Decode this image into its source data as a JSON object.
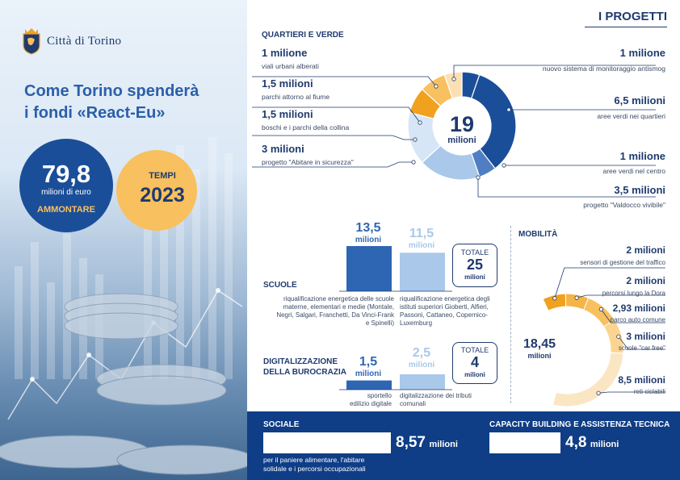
{
  "logo": {
    "text": "Città di Torino"
  },
  "header": {
    "title_line1": "Come Torino spenderà",
    "title_line2": "i fondi «React-Eu»"
  },
  "amount": {
    "value": "79,8",
    "unit": "milioni di euro",
    "label": "AMMONTARE"
  },
  "timing": {
    "label": "TEMPI",
    "value": "2023"
  },
  "projects_title": "I PROGETTI",
  "colors": {
    "dark_blue": "#1a4e99",
    "mid_blue": "#4f7ec2",
    "light_blue": "#a9c8ea",
    "pale_blue": "#d6e6f6",
    "orange": "#f0a21e",
    "light_orange": "#f8c05e",
    "pale_orange": "#fbe0b3",
    "navy": "#0f3d86"
  },
  "chart_data": [
    {
      "type": "pie",
      "title": "QUARTIERI E VERDE",
      "center_value": "19",
      "center_unit": "milioni",
      "categories": [
        "nuovo sistema di monitoraggio antismog",
        "aree verdi nei quartieri",
        "aree verdi nel centro",
        "progetto \"Valdocco vivibile\"",
        "progetto \"Abitare in sicurezza\"",
        "boschi e i parchi della collina",
        "parchi attorno al fiume",
        "viali urbani alberati"
      ],
      "values": [
        1,
        6.5,
        1,
        3.5,
        3,
        1.5,
        1.5,
        1
      ],
      "labels": [
        "1 milione",
        "6,5 milioni",
        "1 milione",
        "3,5 milioni",
        "3 milioni",
        "1,5 milioni",
        "1,5 milioni",
        "1 milione"
      ],
      "colors": [
        "#1a4e99",
        "#1a4e99",
        "#4f7ec2",
        "#a9c8ea",
        "#d6e6f6",
        "#f0a21e",
        "#f8c05e",
        "#fbe0b3"
      ]
    },
    {
      "type": "bar",
      "title": "SCUOLE",
      "categories": [
        "riqualificazione energetica delle scuole materne, elementari e medie (Montale, Negri, Salgari, Franchetti, Da Vinci-Frank e Spinelli)",
        "riqualificazione energetica degli istituti superiori Gioberti, Alfieri, Passoni, Cattaneo, Copernico-Luxemburg"
      ],
      "values": [
        13.5,
        11.5
      ],
      "value_labels": [
        "13,5",
        "11,5"
      ],
      "unit": "milioni",
      "total_label": "TOTALE",
      "total_value": "25",
      "total_unit": "milioni",
      "colors": [
        "#2f66b3",
        "#a9c8ea"
      ]
    },
    {
      "type": "bar",
      "title": "DIGITALIZZAZIONE DELLA BUROCRAZIA",
      "categories": [
        "sportello edilizio digitale",
        "digitalizzazione dei tributi comunali"
      ],
      "values": [
        1.5,
        2.5
      ],
      "value_labels": [
        "1,5",
        "2,5"
      ],
      "unit": "milioni",
      "total_label": "TOTALE",
      "total_value": "4",
      "total_unit": "milioni",
      "colors": [
        "#2f66b3",
        "#a9c8ea"
      ]
    },
    {
      "type": "pie",
      "title": "MOBILITÀ",
      "center_value": "18,45",
      "center_unit": "milioni",
      "categories": [
        "sensori di gestione del traffico",
        "percorsi lungo la Dora",
        "parco auto comune",
        "scuole \"car free\"",
        "reti ciclabili"
      ],
      "values": [
        2,
        2,
        2.93,
        3,
        8.5
      ],
      "labels": [
        "2 milioni",
        "2 milioni",
        "2,93 milioni",
        "3 milioni",
        "8,5 milioni"
      ],
      "colors": [
        "#f0a21e",
        "#f5b446",
        "#f8c05e",
        "#fbd590",
        "#fbe6c4"
      ]
    }
  ],
  "sociale": {
    "title": "SOCIALE",
    "value": "8,57",
    "unit": "milioni",
    "desc_line1": "per il paniere alimentare, l'abitare",
    "desc_line2": "solidale e i percorsi occupazionali"
  },
  "capacity": {
    "title": "CAPACITY BUILDING E ASSISTENZA TECNICA",
    "value": "4,8",
    "unit": "milioni"
  }
}
